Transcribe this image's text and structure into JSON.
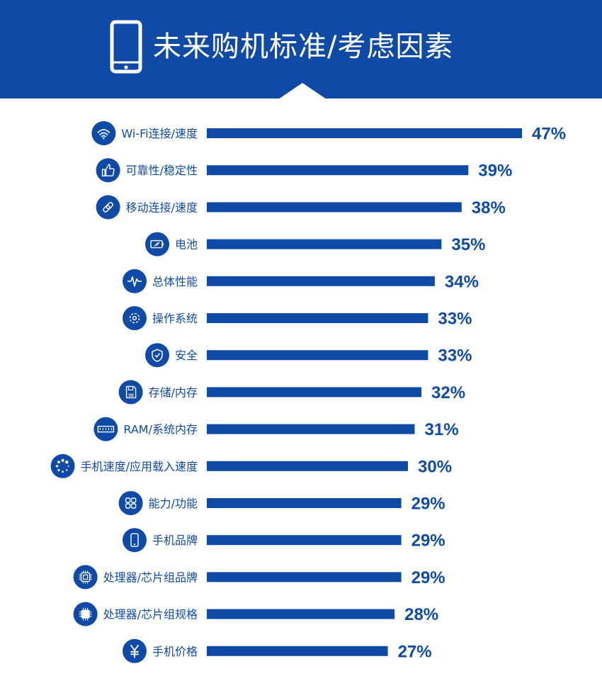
{
  "header": {
    "title": "未来购机标准/考虑因素",
    "icon": "smartphone-icon",
    "background_color": "#0f4aa6"
  },
  "colors": {
    "bar": "#0f4aa6",
    "value_text": "#0f4aa6",
    "label_text": "#0f4aa6",
    "icon_circle": "#0f4aa6"
  },
  "chart_data": {
    "type": "bar",
    "orientation": "horizontal",
    "title": "未来购机标准/考虑因素",
    "xlim": [
      0,
      47
    ],
    "grid": false,
    "legend": "none",
    "categories": [
      "Wi-Fi连接/速度",
      "可靠性/稳定性",
      "移动连接/速度",
      "电池",
      "总体性能",
      "操作系统",
      "安全",
      "存储/内存",
      "RAM/系统内存",
      "手机速度/应用载入速度",
      "能力/功能",
      "手机品牌",
      "处理器/芯片组品牌",
      "处理器/芯片组规格",
      "手机价格"
    ],
    "values": [
      47,
      39,
      38,
      35,
      34,
      33,
      33,
      32,
      31,
      30,
      29,
      29,
      29,
      28,
      27
    ],
    "value_labels": [
      "47%",
      "39%",
      "38%",
      "35%",
      "34%",
      "33%",
      "33%",
      "32%",
      "31%",
      "30%",
      "29%",
      "29%",
      "29%",
      "28%",
      "27%"
    ],
    "icons": [
      "wifi-icon",
      "thumbs-up-icon",
      "link-icon",
      "battery-icon",
      "pulse-icon",
      "gear-icon",
      "shield-check-icon",
      "floppy-disk-icon",
      "memory-module-icon",
      "loading-dots-icon",
      "grid-apps-icon",
      "smartphone-icon",
      "cpu-chip-icon",
      "cpu-chip-filled-icon",
      "yen-icon"
    ]
  }
}
